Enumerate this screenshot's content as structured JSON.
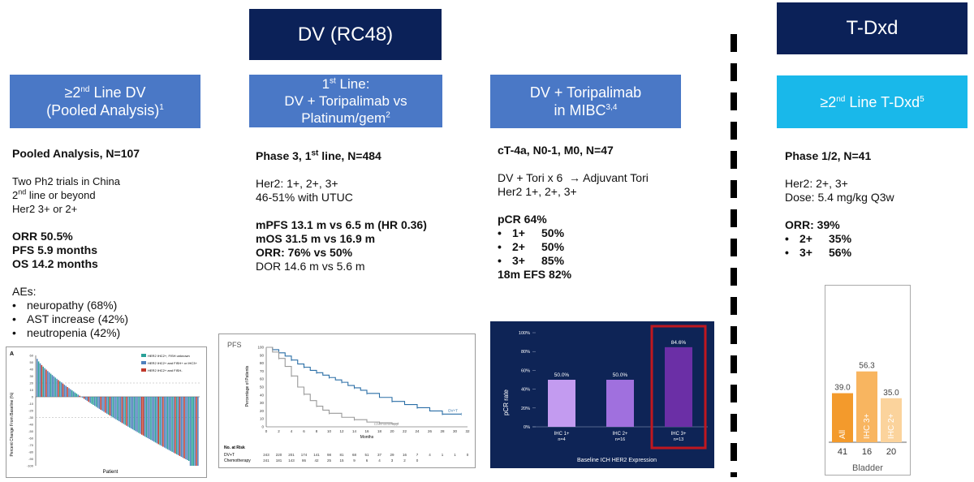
{
  "headers": {
    "dv": "DV (RC48)",
    "tdxd": "T-Dxd"
  },
  "col1": {
    "title_pre": "≥2",
    "title_sup": "nd",
    "title_mid": " Line DV",
    "title_line2": "(Pooled Analysis)",
    "title_ref": "1",
    "analysis": "Pooled Analysis, N=107",
    "lines": [
      "Two Ph2 trials in China",
      "line or beyond",
      "Her2 3+ or 2+"
    ],
    "line2_prefix": "2",
    "line2_sup": "nd",
    "orr": "ORR 50.5%",
    "pfs": "PFS 5.9 months",
    "os": "OS 14.2 months",
    "aes_title": "AEs:",
    "aes": [
      "neuropathy (68%)",
      "AST increase (42%)",
      "neutropenia (42%)"
    ]
  },
  "col2": {
    "title_pre": "1",
    "title_sup": "st",
    "title_mid": " Line:",
    "title_line2": "DV + Toripalimab vs",
    "title_line3": "Platinum/gem",
    "title_ref": "2",
    "phase_pre": "Phase 3, 1",
    "phase_sup": "st",
    "phase_post": " line, N=484",
    "her2": "Her2: 1+, 2+, 3+",
    "utuc": "46-51% with UTUC",
    "mpfs": "mPFS 13.1 m vs 6.5 m (HR 0.36)",
    "mos": "mOS 31.5 m vs 16.9 m",
    "orr": "ORR: 76% vs 50%",
    "dor": "DOR 14.6 m vs 5.6 m"
  },
  "col3": {
    "title_line1": "DV + Toripalimab",
    "title_line2": "in MIBC",
    "title_ref": "3,4",
    "cohort": "cT-4a, N0-1, M0, N=47",
    "regimen": "DV + Tori x 6  → Adjuvant Tori",
    "her2": "Her2 1+, 2+, 3+",
    "pcr": "pCR 64%",
    "pcr_items": [
      {
        "k": "1+",
        "v": "50%"
      },
      {
        "k": "2+",
        "v": "50%"
      },
      {
        "k": "3+",
        "v": "85%"
      }
    ],
    "efs": "18m EFS 82%"
  },
  "col4": {
    "title_pre": "≥2",
    "title_sup": "nd",
    "title_mid": " Line T-Dxd",
    "title_ref": "5",
    "phase": "Phase 1/2, N=41",
    "her2": "Her2: 2+, 3+",
    "dose": "Dose: 5.4 mg/kg Q3w",
    "orr": "ORR: 39%",
    "orr_items": [
      {
        "k": "2+",
        "v": "35%"
      },
      {
        "k": "3+",
        "v": "56%"
      }
    ]
  },
  "chart_data": [
    {
      "type": "bar",
      "title": "",
      "panel_label": "A",
      "ylabel": "Percent Change From Baseline (%)",
      "xlabel": "Patient",
      "ylim": [
        -100,
        60
      ],
      "yticks": [
        60,
        50,
        40,
        30,
        20,
        10,
        0,
        -10,
        -20,
        -30,
        -40,
        -50,
        -60,
        -70,
        -80,
        -90,
        -100
      ],
      "legend": [
        "HER2 IHC2+, FISH unknown",
        "HER2 IHC2+ and FISH+ or IHC3+",
        "HER2 IHC2+ and FISH-"
      ],
      "colors": [
        "#2aa198",
        "#4f81bd",
        "#c0392b"
      ],
      "n_patients": 107
    },
    {
      "type": "line",
      "title": "PFS",
      "xlabel": "Months",
      "ylabel": "Percentage of Patients",
      "xlim": [
        0,
        32
      ],
      "ylim": [
        0,
        100
      ],
      "xticks": [
        0,
        2,
        4,
        6,
        8,
        10,
        12,
        14,
        16,
        18,
        20,
        22,
        24,
        26,
        28,
        30,
        32
      ],
      "yticks": [
        0,
        10,
        20,
        30,
        40,
        50,
        60,
        70,
        80,
        90,
        100
      ],
      "series": [
        {
          "name": "DV+T",
          "color": "#2a6ea6",
          "x": [
            0,
            1,
            2,
            3,
            4,
            5,
            6,
            7,
            8,
            9,
            10,
            11,
            12,
            13,
            14,
            15,
            16,
            18,
            20,
            22,
            24,
            26,
            28,
            30,
            31
          ],
          "y": [
            100,
            97,
            93,
            89,
            84,
            79,
            75,
            71,
            68,
            65,
            62,
            59,
            56,
            52,
            49,
            46,
            42,
            37,
            32,
            28,
            24,
            20,
            16,
            16,
            16
          ]
        },
        {
          "name": "Chemotherapy",
          "color": "#999999",
          "x": [
            0,
            1,
            2,
            3,
            4,
            5,
            6,
            7,
            8,
            9,
            10,
            12,
            14,
            16,
            18,
            20,
            21
          ],
          "y": [
            100,
            94,
            86,
            76,
            64,
            50,
            41,
            33,
            26,
            21,
            17,
            12,
            9,
            6,
            5,
            4,
            4
          ]
        }
      ],
      "risk_title": "No. at Risk",
      "risk_table": [
        {
          "name": "DV+T",
          "values": [
            "243",
            "220",
            "201",
            "174",
            "141",
            "98",
            "81",
            "68",
            "51",
            "37",
            "29",
            "16",
            "7",
            "4",
            "1",
            "1",
            "0"
          ]
        },
        {
          "name": "Chemotherapy",
          "values": [
            "241",
            "181",
            "143",
            "86",
            "42",
            "25",
            "15",
            "9",
            "6",
            "4",
            "3",
            "2",
            "0",
            "",
            "",
            "",
            ""
          ]
        }
      ]
    },
    {
      "type": "bar",
      "title": "",
      "xlabel": "Baseline ICH HER2 Expression",
      "ylabel": "pCR rate",
      "ylim": [
        0,
        100
      ],
      "yticks": [
        "0%",
        "20%",
        "40%",
        "60%",
        "80%",
        "100%"
      ],
      "categories": [
        "IHC 1+",
        "IHC 2+",
        "IHC 3+"
      ],
      "sublabels": [
        "n=4",
        "n=16",
        "n=13"
      ],
      "values": [
        50.0,
        50.0,
        84.6
      ],
      "labels": [
        "50.0%",
        "50.0%",
        "84.6%"
      ],
      "colors": [
        "#c39bf0",
        "#a070de",
        "#6b2fa6"
      ]
    },
    {
      "type": "bar",
      "title": "",
      "xlabel": "Bladder",
      "categories": [
        "All",
        "IHC 3+",
        "IHC 2+"
      ],
      "counts": [
        "41",
        "16",
        "20"
      ],
      "values": [
        39.0,
        56.3,
        35.0
      ],
      "labels": [
        "39.0",
        "56.3",
        "35.0"
      ],
      "colors": [
        "#f39a2c",
        "#f8b560",
        "#fbd39c"
      ]
    }
  ]
}
